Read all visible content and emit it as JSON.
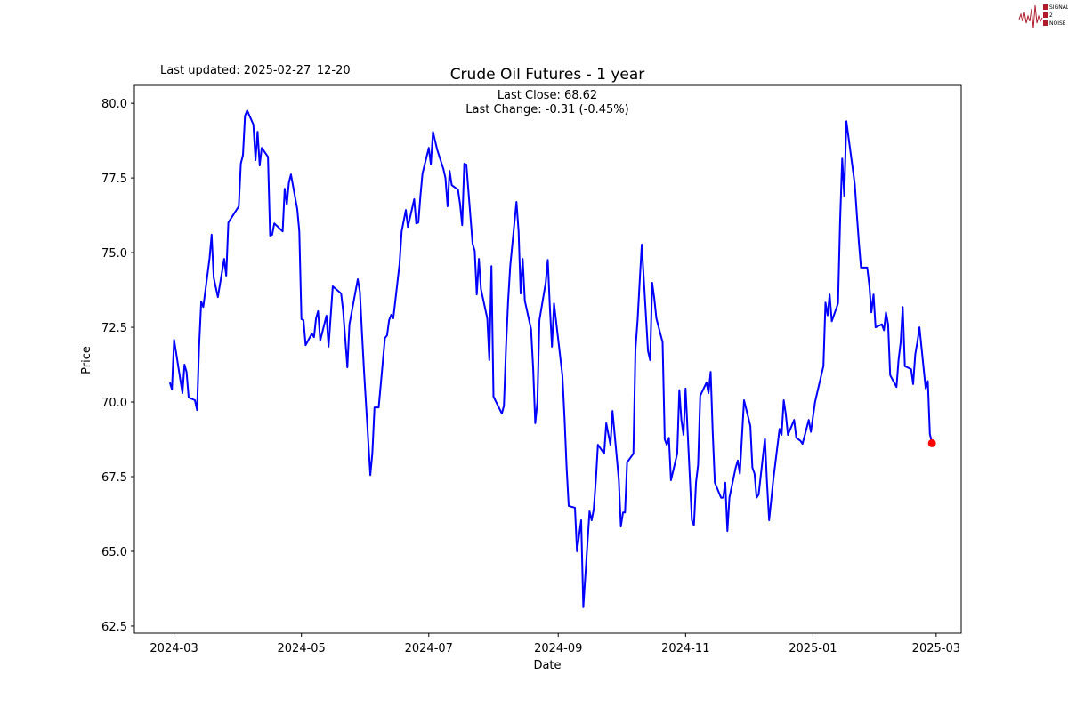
{
  "logo": {
    "lines": [
      "SIGNAL",
      "2",
      "NOISE"
    ],
    "color": "#b01c2e"
  },
  "last_updated": "Last updated: 2025-02-27_12-20",
  "chart_data": {
    "type": "line",
    "title": "Crude Oil Futures - 1 year",
    "xlabel": "Date",
    "ylabel": "Price",
    "annotation": [
      "Last Close: 68.62",
      "Last Change: -0.31 (-0.45%)"
    ],
    "line_color": "#0000ff",
    "marker_color": "#ff0000",
    "grid": false,
    "xlim": [
      "2024-02-11",
      "2025-03-13"
    ],
    "ylim": [
      62.26,
      80.6
    ],
    "xticks": [
      "2024-03",
      "2024-05",
      "2024-07",
      "2024-09",
      "2024-11",
      "2025-01",
      "2025-03"
    ],
    "yticks": [
      "62.5",
      "65.0",
      "67.5",
      "70.0",
      "72.5",
      "75.0",
      "77.5",
      "80.0"
    ],
    "last_point": {
      "x": "2025-02-27",
      "y": 68.62
    },
    "series": [
      {
        "x": [
          "2024-02-28",
          "2024-02-29",
          "2024-03-01",
          "2024-03-05",
          "2024-03-06",
          "2024-03-07",
          "2024-03-08",
          "2024-03-11",
          "2024-03-12",
          "2024-03-13",
          "2024-03-14",
          "2024-03-15",
          "2024-03-18",
          "2024-03-19",
          "2024-03-20",
          "2024-03-22",
          "2024-03-25",
          "2024-03-26",
          "2024-03-27",
          "2024-04-01",
          "2024-04-02",
          "2024-04-03",
          "2024-04-04",
          "2024-04-05",
          "2024-04-08",
          "2024-04-09",
          "2024-04-10",
          "2024-04-11",
          "2024-04-12",
          "2024-04-15",
          "2024-04-16",
          "2024-04-17",
          "2024-04-18",
          "2024-04-22",
          "2024-04-23",
          "2024-04-24",
          "2024-04-25",
          "2024-04-26",
          "2024-04-29",
          "2024-04-30",
          "2024-05-01",
          "2024-05-02",
          "2024-05-03",
          "2024-05-06",
          "2024-05-07",
          "2024-05-08",
          "2024-05-09",
          "2024-05-10",
          "2024-05-13",
          "2024-05-14",
          "2024-05-16",
          "2024-05-20",
          "2024-05-21",
          "2024-05-23",
          "2024-05-24",
          "2024-05-28",
          "2024-05-29",
          "2024-05-30",
          "2024-05-31",
          "2024-06-03",
          "2024-06-04",
          "2024-06-05",
          "2024-06-07",
          "2024-06-10",
          "2024-06-11",
          "2024-06-12",
          "2024-06-13",
          "2024-06-14",
          "2024-06-17",
          "2024-06-18",
          "2024-06-20",
          "2024-06-21",
          "2024-06-24",
          "2024-06-25",
          "2024-06-26",
          "2024-06-27",
          "2024-06-28",
          "2024-07-01",
          "2024-07-02",
          "2024-07-03",
          "2024-07-05",
          "2024-07-08",
          "2024-07-09",
          "2024-07-10",
          "2024-07-11",
          "2024-07-12",
          "2024-07-15",
          "2024-07-16",
          "2024-07-17",
          "2024-07-18",
          "2024-07-19",
          "2024-07-22",
          "2024-07-23",
          "2024-07-24",
          "2024-07-25",
          "2024-07-26",
          "2024-07-29",
          "2024-07-30",
          "2024-07-31",
          "2024-08-01",
          "2024-08-05",
          "2024-08-06",
          "2024-08-07",
          "2024-08-08",
          "2024-08-09",
          "2024-08-12",
          "2024-08-13",
          "2024-08-14",
          "2024-08-15",
          "2024-08-16",
          "2024-08-19",
          "2024-08-20",
          "2024-08-21",
          "2024-08-22",
          "2024-08-23",
          "2024-08-26",
          "2024-08-27",
          "2024-08-28",
          "2024-08-29",
          "2024-08-30",
          "2024-09-03",
          "2024-09-04",
          "2024-09-05",
          "2024-09-06",
          "2024-09-09",
          "2024-09-10",
          "2024-09-11",
          "2024-09-12",
          "2024-09-13",
          "2024-09-16",
          "2024-09-17",
          "2024-09-18",
          "2024-09-19",
          "2024-09-20",
          "2024-09-23",
          "2024-09-24",
          "2024-09-25",
          "2024-09-26",
          "2024-09-27",
          "2024-09-30",
          "2024-10-01",
          "2024-10-02",
          "2024-10-03",
          "2024-10-04",
          "2024-10-07",
          "2024-10-08",
          "2024-10-09",
          "2024-10-10",
          "2024-10-11",
          "2024-10-14",
          "2024-10-15",
          "2024-10-16",
          "2024-10-17",
          "2024-10-18",
          "2024-10-21",
          "2024-10-22",
          "2024-10-23",
          "2024-10-24",
          "2024-10-25",
          "2024-10-28",
          "2024-10-29",
          "2024-10-30",
          "2024-10-31",
          "2024-11-01",
          "2024-11-04",
          "2024-11-05",
          "2024-11-06",
          "2024-11-07",
          "2024-11-08",
          "2024-11-11",
          "2024-11-12",
          "2024-11-13",
          "2024-11-14",
          "2024-11-15",
          "2024-11-18",
          "2024-11-19",
          "2024-11-20",
          "2024-11-21",
          "2024-11-22",
          "2024-11-25",
          "2024-11-26",
          "2024-11-27",
          "2024-11-29",
          "2024-12-02",
          "2024-12-03",
          "2024-12-04",
          "2024-12-05",
          "2024-12-06",
          "2024-12-09",
          "2024-12-10",
          "2024-12-11",
          "2024-12-12",
          "2024-12-13",
          "2024-12-16",
          "2024-12-17",
          "2024-12-18",
          "2024-12-19",
          "2024-12-20",
          "2024-12-23",
          "2024-12-24",
          "2024-12-26",
          "2024-12-27",
          "2024-12-30",
          "2024-12-31",
          "2025-01-02",
          "2025-01-03",
          "2025-01-06",
          "2025-01-07",
          "2025-01-08",
          "2025-01-09",
          "2025-01-10",
          "2025-01-13",
          "2025-01-14",
          "2025-01-15",
          "2025-01-16",
          "2025-01-17",
          "2025-01-21",
          "2025-01-22",
          "2025-01-23",
          "2025-01-24",
          "2025-01-27",
          "2025-01-28",
          "2025-01-29",
          "2025-01-30",
          "2025-01-31",
          "2025-02-03",
          "2025-02-04",
          "2025-02-05",
          "2025-02-06",
          "2025-02-07",
          "2025-02-10",
          "2025-02-11",
          "2025-02-12",
          "2025-02-13",
          "2025-02-14",
          "2025-02-17",
          "2025-02-18",
          "2025-02-19",
          "2025-02-20",
          "2025-02-21",
          "2025-02-24",
          "2025-02-25",
          "2025-02-26",
          "2025-02-27"
        ],
        "y": [
          70.65,
          70.42,
          72.08,
          70.3,
          71.25,
          71.01,
          70.15,
          70.06,
          69.73,
          71.85,
          73.36,
          73.18,
          74.82,
          75.6,
          74.17,
          73.51,
          74.79,
          74.23,
          76.01,
          76.55,
          77.98,
          78.27,
          79.58,
          79.76,
          79.29,
          78.1,
          79.05,
          77.92,
          78.51,
          78.21,
          75.57,
          75.6,
          75.98,
          75.71,
          77.14,
          76.61,
          77.35,
          77.62,
          76.46,
          75.71,
          72.77,
          72.74,
          71.9,
          72.29,
          72.17,
          72.8,
          73.04,
          72.05,
          72.89,
          71.85,
          73.87,
          73.63,
          73.04,
          71.16,
          72.59,
          74.11,
          73.69,
          72.32,
          71.0,
          67.55,
          68.3,
          69.82,
          69.82,
          72.14,
          72.23,
          72.74,
          72.92,
          72.8,
          74.61,
          75.71,
          76.43,
          75.86,
          76.79,
          75.98,
          76.01,
          76.9,
          77.65,
          78.51,
          77.95,
          79.05,
          78.45,
          77.8,
          77.5,
          76.55,
          77.74,
          77.26,
          77.11,
          76.61,
          75.92,
          77.98,
          77.95,
          75.3,
          75.06,
          73.6,
          74.79,
          73.78,
          72.8,
          71.4,
          74.55,
          70.18,
          69.61,
          69.88,
          71.85,
          73.36,
          74.55,
          76.7,
          75.71,
          73.63,
          74.79,
          73.39,
          72.44,
          71.1,
          69.29,
          70.0,
          72.74,
          74.0,
          74.76,
          73.2,
          71.85,
          73.3,
          70.89,
          69.46,
          67.83,
          66.52,
          66.46,
          65.0,
          65.54,
          66.04,
          63.13,
          66.34,
          66.04,
          66.4,
          67.38,
          68.57,
          68.27,
          69.29,
          68.93,
          68.57,
          69.7,
          67.4,
          65.83,
          66.3,
          66.3,
          67.98,
          68.27,
          71.76,
          72.74,
          74.0,
          75.27,
          71.7,
          71.4,
          73.99,
          73.48,
          72.8,
          72.0,
          68.75,
          68.57,
          68.8,
          67.38,
          68.27,
          70.4,
          69.4,
          68.9,
          70.45,
          66.04,
          65.87,
          67.32,
          67.9,
          70.21,
          70.65,
          70.3,
          71.01,
          69.0,
          67.3,
          66.79,
          66.8,
          67.3,
          65.68,
          66.8,
          67.8,
          68.04,
          67.6,
          70.06,
          69.2,
          67.8,
          67.6,
          66.8,
          66.9,
          68.78,
          67.3,
          66.04,
          66.7,
          67.4,
          69.1,
          68.9,
          70.06,
          69.6,
          68.9,
          69.4,
          68.8,
          68.7,
          68.6,
          69.4,
          69.0,
          70.0,
          70.3,
          71.2,
          73.33,
          72.9,
          73.6,
          72.7,
          73.3,
          76.01,
          78.15,
          76.9,
          79.4,
          77.3,
          76.3,
          75.36,
          74.5,
          74.5,
          73.9,
          73.0,
          73.6,
          72.5,
          72.6,
          72.4,
          73.0,
          72.6,
          70.9,
          70.5,
          71.4,
          72.0,
          73.18,
          71.2,
          71.1,
          70.6,
          71.6,
          72.0,
          72.5,
          70.45,
          70.7,
          68.93,
          68.62
        ]
      }
    ]
  }
}
